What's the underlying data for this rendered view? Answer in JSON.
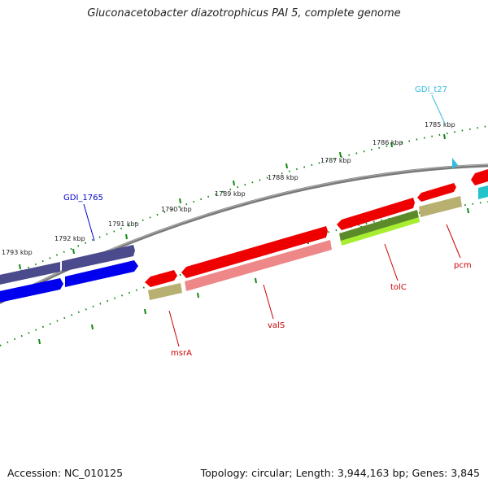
{
  "title": "Gluconacetobacter diazotrophicus PAI 5, complete genome",
  "footer": {
    "accession": "Accession: NC_010125",
    "stats": "Topology: circular; Length: 3,944,163 bp; Genes: 3,845"
  },
  "colors": {
    "backbone": "#808080",
    "ruler_tick": "#118811",
    "label_blue": "#0000cc",
    "label_cyan": "#33bbdd",
    "label_red": "#cc0000",
    "gene_purple": "#4a4a8c",
    "gene_blue": "#0000ee",
    "gene_red": "#ee0000",
    "gene_pink": "#ee8888",
    "gene_olive": "#b8b070",
    "gene_darkgreen": "#5c8a2a",
    "gene_lime": "#a8ee30",
    "gene_cyan": "#22c4cc"
  },
  "ruler_labels": [
    "1785 kbp",
    "1786 kbp",
    "1787 kbp",
    "1788 kbp",
    "1789 kbp",
    "1790 kbp",
    "1791 kbp",
    "1792 kbp",
    "1793 kbp"
  ],
  "gene_labels": [
    "GDI_t27",
    "GDI_1765",
    "tolC",
    "pcm",
    "valS",
    "msrA"
  ]
}
